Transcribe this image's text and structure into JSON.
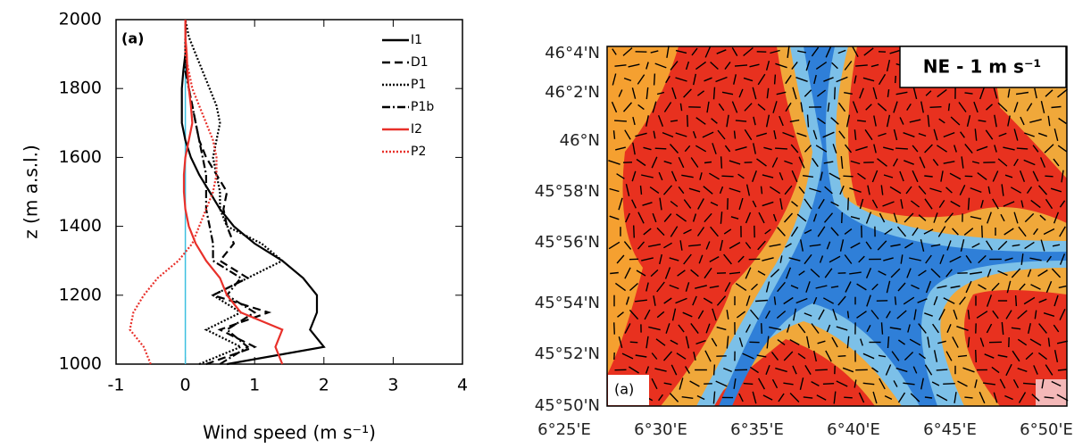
{
  "chart_data": [
    {
      "type": "profile",
      "panel_label": "(a)",
      "value_axis_label": "Wind speed (m s⁻¹)",
      "height_axis_label": "z (m a.s.l.)",
      "x": [
        1000,
        1050,
        1100,
        1150,
        1200,
        1250,
        1300,
        1350,
        1400,
        1450,
        1500,
        1550,
        1600,
        1650,
        1700,
        1750,
        1800,
        1850,
        1900,
        1950,
        2000
      ],
      "xlim": [
        1000,
        2000
      ],
      "xticks": [
        1000,
        1200,
        1400,
        1600,
        1800,
        2000
      ],
      "ylim": [
        -1,
        4
      ],
      "yticks": [
        -1,
        0,
        1,
        2,
        3,
        4
      ],
      "reference_line": {
        "value": 0,
        "color": "#3cc0e0"
      },
      "series": [
        {
          "name": "I1",
          "color": "#000000",
          "style": "solid",
          "values": [
            0.6,
            2.0,
            1.8,
            1.9,
            1.9,
            1.7,
            1.4,
            1.0,
            0.7,
            0.5,
            0.35,
            0.2,
            0.08,
            0.0,
            -0.05,
            -0.05,
            -0.05,
            -0.03,
            0.0,
            0.0,
            0.0
          ]
        },
        {
          "name": "D1",
          "color": "#000000",
          "style": "dashed",
          "values": [
            0.3,
            1.0,
            0.5,
            1.2,
            0.4,
            0.9,
            0.5,
            0.7,
            0.6,
            0.55,
            0.6,
            0.45,
            0.3,
            0.2,
            0.15,
            0.1,
            0.05,
            0.02,
            0.0,
            0.0,
            0.0
          ]
        },
        {
          "name": "P1",
          "color": "#000000",
          "style": "dotted",
          "values": [
            0.2,
            0.8,
            0.3,
            0.8,
            0.4,
            0.9,
            1.4,
            1.1,
            0.6,
            0.5,
            0.5,
            0.45,
            0.4,
            0.45,
            0.5,
            0.45,
            0.35,
            0.25,
            0.15,
            0.05,
            0.0
          ]
        },
        {
          "name": "P1b",
          "color": "#000000",
          "style": "dashdot",
          "values": [
            0.5,
            0.9,
            0.6,
            1.0,
            0.6,
            0.8,
            0.4,
            0.4,
            0.35,
            0.3,
            0.3,
            0.3,
            0.25,
            0.2,
            0.15,
            0.1,
            0.05,
            0.0,
            0.0,
            0.0,
            0.0
          ]
        },
        {
          "name": "I2",
          "color": "#e8302a",
          "style": "solid",
          "values": [
            1.4,
            1.3,
            1.4,
            0.8,
            0.6,
            0.5,
            0.3,
            0.15,
            0.05,
            0.0,
            -0.02,
            -0.02,
            0.0,
            0.05,
            0.1,
            0.08,
            0.05,
            0.03,
            0.02,
            0.0,
            0.0
          ]
        },
        {
          "name": "P2",
          "color": "#e8302a",
          "style": "dotted",
          "values": [
            -0.5,
            -0.6,
            -0.8,
            -0.75,
            -0.6,
            -0.4,
            -0.1,
            0.1,
            0.2,
            0.3,
            0.4,
            0.45,
            0.45,
            0.4,
            0.3,
            0.2,
            0.1,
            0.05,
            0.0,
            0.0,
            0.0
          ]
        }
      ]
    },
    {
      "type": "map",
      "title": "NE - 1 m s⁻¹",
      "panel_label": "(a)",
      "lat_labels": [
        "46°4'N",
        "46°2'N",
        "46°N",
        "45°58'N",
        "45°56'N",
        "45°54'N",
        "45°52'N",
        "45°50'N"
      ],
      "lon_labels": [
        "6°25'E",
        "6°30'E",
        "6°35'E",
        "6°40'E",
        "6°45'E",
        "6°50'E"
      ]
    }
  ]
}
